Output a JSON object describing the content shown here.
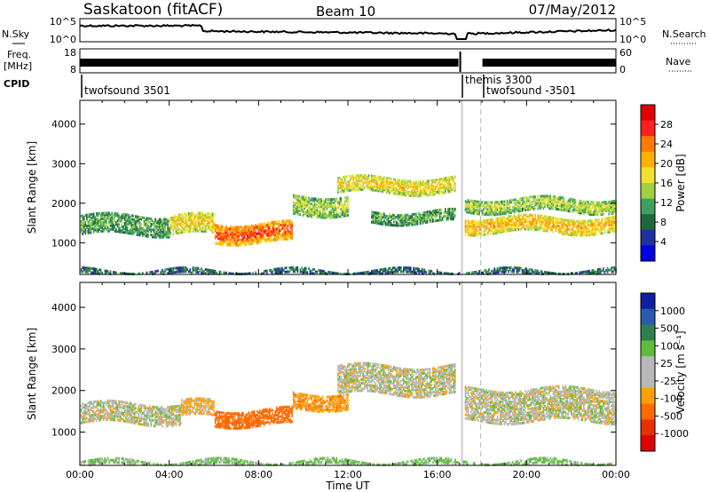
{
  "header": {
    "radar": "Saskatoon (fitACF)",
    "beam": "Beam 10",
    "date": "07/May/2012"
  },
  "noise_panel": {
    "left_label": "N.Sky",
    "right_label": "N.Search",
    "left_ticks": [
      "10^5",
      "10^0"
    ],
    "right_ticks": [
      "10^5",
      "10^0"
    ]
  },
  "freq_panel": {
    "left_label_1": "Freq.",
    "left_label_2": "[MHz]",
    "right_label": "Nave",
    "left_ticks": [
      "18",
      "8"
    ],
    "right_ticks": [
      "60",
      "0"
    ]
  },
  "cpid": {
    "label": "CPID",
    "entries": [
      {
        "text": "twofsound 3501"
      },
      {
        "text": "themis 3300"
      },
      {
        "text": "twofsound -3501"
      }
    ]
  },
  "axes": {
    "ylabel": "Slant Range [km]",
    "yticks": [
      "1000",
      "2000",
      "3000",
      "4000"
    ],
    "xlabel": "Time UT",
    "xticks": [
      "00:00",
      "04:00",
      "08:00",
      "12:00",
      "16:00",
      "20:00",
      "00:00"
    ]
  },
  "power_colorbar": {
    "label": "Power [dB]",
    "ticks": [
      "28",
      "24",
      "20",
      "16",
      "12",
      "8",
      "4"
    ],
    "colors": [
      "#e00000",
      "#ff2020",
      "#ff7a00",
      "#ffb000",
      "#f0e030",
      "#a0d040",
      "#40a060",
      "#206840",
      "#2030a0",
      "#0000e0"
    ]
  },
  "velocity_colorbar": {
    "label": "Velocity [m s⁻¹]",
    "ticks": [
      "1000",
      "500",
      "100",
      "25",
      "-25",
      "-100",
      "-500",
      "-1000"
    ],
    "colors": [
      "#1020a0",
      "#2a5ab0",
      "#2f7f50",
      "#5bbf3a",
      "#b8b8b8",
      "#b8b8b8",
      "#ffa000",
      "#ff6a00",
      "#e83000",
      "#e00000"
    ]
  },
  "chart_data": [
    {
      "type": "heatmap",
      "panel": "power",
      "xlabel": "Time UT",
      "ylabel": "Slant Range [km]",
      "x_range_hours": [
        0,
        24
      ],
      "ylim": [
        200,
        4600
      ],
      "colorbar_range_dB": [
        0,
        32
      ],
      "features": [
        {
          "t_start": 0.0,
          "t_end": 4.0,
          "range_center_km": 1500,
          "range_width_km": 500,
          "power_dB": 12
        },
        {
          "t_start": 4.0,
          "t_end": 6.0,
          "range_center_km": 1500,
          "range_width_km": 500,
          "power_dB": 20
        },
        {
          "t_start": 6.0,
          "t_end": 9.5,
          "range_center_km": 1300,
          "range_width_km": 500,
          "power_dB": 28
        },
        {
          "t_start": 9.5,
          "t_end": 12.0,
          "range_center_km": 2000,
          "range_width_km": 500,
          "power_dB": 16
        },
        {
          "t_start": 11.5,
          "t_end": 16.8,
          "range_center_km": 2500,
          "range_width_km": 400,
          "power_dB": 20
        },
        {
          "t_start": 13.0,
          "t_end": 16.8,
          "range_center_km": 1700,
          "range_width_km": 300,
          "power_dB": 12
        },
        {
          "t_start": 17.2,
          "t_end": 24.0,
          "range_center_km": 2000,
          "range_width_km": 350,
          "power_dB": 16
        },
        {
          "t_start": 17.2,
          "t_end": 24.0,
          "range_center_km": 1500,
          "range_width_km": 400,
          "power_dB": 22
        },
        {
          "t_start": 0.0,
          "t_end": 24.0,
          "range_center_km": 300,
          "range_width_km": 150,
          "power_dB": 8
        }
      ],
      "data_gaps_hours": [
        16.95,
        17.15
      ]
    },
    {
      "type": "heatmap",
      "panel": "velocity",
      "xlabel": "Time UT",
      "ylabel": "Slant Range [km]",
      "x_range_hours": [
        0,
        24
      ],
      "ylim": [
        200,
        4600
      ],
      "colorbar_range_ms": [
        -1000,
        1000
      ],
      "features": [
        {
          "t_start": 0.0,
          "t_end": 4.5,
          "range_center_km": 1500,
          "range_width_km": 500,
          "velocity_ms": 0
        },
        {
          "t_start": 4.5,
          "t_end": 6.0,
          "range_center_km": 1600,
          "range_width_km": 400,
          "velocity_ms": -100
        },
        {
          "t_start": 6.0,
          "t_end": 9.5,
          "range_center_km": 1400,
          "range_width_km": 400,
          "velocity_ms": -400
        },
        {
          "t_start": 9.5,
          "t_end": 12.0,
          "range_center_km": 1800,
          "range_width_km": 400,
          "velocity_ms": -150
        },
        {
          "t_start": 11.5,
          "t_end": 16.8,
          "range_center_km": 2300,
          "range_width_km": 700,
          "velocity_ms": 0
        },
        {
          "t_start": 17.2,
          "t_end": 24.0,
          "range_center_km": 1700,
          "range_width_km": 800,
          "velocity_ms": 0
        },
        {
          "t_start": 0.0,
          "t_end": 24.0,
          "range_center_km": 300,
          "range_width_km": 150,
          "velocity_ms": 100
        }
      ],
      "data_gaps_hours": [
        16.95,
        17.15
      ]
    }
  ]
}
